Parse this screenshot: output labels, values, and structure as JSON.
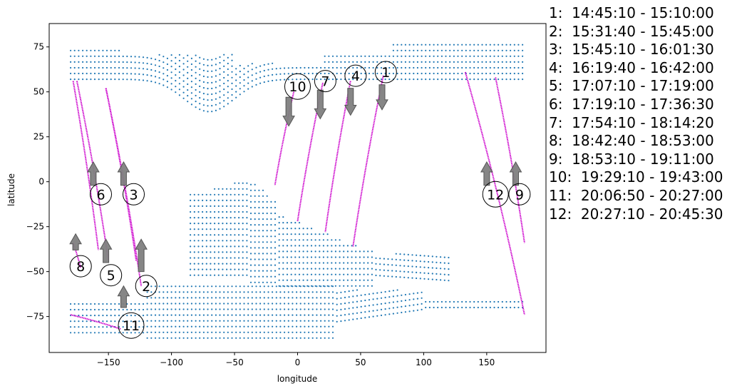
{
  "chart_data": {
    "type": "scatter",
    "xlabel": "longitude",
    "ylabel": "latitude",
    "xlim": [
      -197,
      197
    ],
    "ylim": [
      -95,
      88
    ],
    "x_ticks": [
      -150,
      -100,
      -50,
      0,
      50,
      100,
      150
    ],
    "y_ticks": [
      -75,
      -50,
      -25,
      0,
      25,
      50,
      75
    ],
    "grid": false,
    "colors": {
      "dots": "#1f77b4",
      "track": "#cc00cc",
      "arrow_fill": "#808080",
      "arrow_edge": "#555555"
    },
    "coverage_regions": [
      {
        "name": "north",
        "lon": [
          -180,
          180
        ],
        "lat": [
          57,
          77
        ],
        "dip_center_lon": -70,
        "dip_depth": 18
      },
      {
        "name": "south-america-south-atlantic",
        "lon": [
          -85,
          120
        ],
        "lat": [
          -55,
          3
        ]
      },
      {
        "name": "south-band",
        "lon": [
          -180,
          180
        ],
        "lat": [
          -87,
          -65
        ]
      }
    ],
    "tracks": [
      {
        "id": "1",
        "time": "14:45:10 - 15:10:00",
        "start": [
          68,
          59
        ],
        "end": [
          44,
          -36
        ],
        "direction": "south",
        "label_pos": [
          70,
          61
        ],
        "arrow": {
          "from": [
            67,
            54
          ],
          "to": [
            67,
            40
          ]
        }
      },
      {
        "id": "2",
        "time": "15:31:40 - 15:45:00",
        "start": [
          -152,
          52
        ],
        "end": [
          -124,
          -58
        ],
        "direction": "north",
        "label_pos": [
          -120,
          -58
        ],
        "arrow": {
          "from": [
            -124,
            -50
          ],
          "to": [
            -124,
            -32
          ]
        }
      },
      {
        "id": "3",
        "time": "15:45:10 - 16:01:30",
        "start": [
          -152,
          52
        ],
        "end": [
          -128,
          -44
        ],
        "direction": "north",
        "label_pos": [
          -130,
          -7
        ],
        "arrow": {
          "from": [
            -138,
            -2
          ],
          "to": [
            -138,
            11
          ]
        }
      },
      {
        "id": "4",
        "time": "16:19:40 - 16:42:00",
        "start": [
          42,
          56
        ],
        "end": [
          22,
          -28
        ],
        "direction": "south",
        "label_pos": [
          46,
          59
        ],
        "arrow": {
          "from": [
            42,
            52
          ],
          "to": [
            42,
            37
          ]
        }
      },
      {
        "id": "5",
        "time": "17:07:10 - 17:19:00",
        "start": [
          -175,
          56
        ],
        "end": [
          -150,
          -44
        ],
        "direction": "north",
        "label_pos": [
          -148,
          -52
        ],
        "arrow": {
          "from": [
            -152,
            -45
          ],
          "to": [
            -152,
            -32
          ]
        }
      },
      {
        "id": "6",
        "time": "17:19:10 - 17:36:30",
        "start": [
          -178,
          56
        ],
        "end": [
          -158,
          -38
        ],
        "direction": "north",
        "label_pos": [
          -156,
          -7
        ],
        "arrow": {
          "from": [
            -162,
            -2
          ],
          "to": [
            -162,
            11
          ]
        }
      },
      {
        "id": "7",
        "time": "17:54:10 - 18:14:20",
        "start": [
          20,
          55
        ],
        "end": [
          0,
          -22
        ],
        "direction": "south",
        "label_pos": [
          22,
          56
        ],
        "arrow": {
          "from": [
            18,
            51
          ],
          "to": [
            18,
            35
          ]
        }
      },
      {
        "id": "8",
        "time": "18:42:40 - 18:53:00",
        "start": [
          -178,
          -34
        ],
        "end": [
          -172,
          -48
        ],
        "direction": "north",
        "label_pos": [
          -172,
          -47
        ],
        "arrow": {
          "from": [
            -176,
            -38
          ],
          "to": [
            -176,
            -29
          ]
        }
      },
      {
        "id": "9",
        "time": "18:53:10 - 19:11:00",
        "start": [
          157,
          58
        ],
        "end": [
          180,
          -34
        ],
        "direction": "north",
        "label_pos": [
          176,
          -7
        ],
        "arrow": {
          "from": [
            173,
            -2
          ],
          "to": [
            173,
            11
          ]
        }
      },
      {
        "id": "10",
        "time": "19:29:10 - 19:43:00",
        "start": [
          -3,
          50
        ],
        "end": [
          -18,
          -2
        ],
        "direction": "south",
        "label_pos": [
          0,
          53
        ],
        "arrow": {
          "from": [
            -7,
            47
          ],
          "to": [
            -7,
            31
          ]
        }
      },
      {
        "id": "11",
        "time": "20:06:50 - 20:27:00",
        "start": [
          -180,
          -74
        ],
        "end": [
          -140,
          -82
        ],
        "direction": "north",
        "label_pos": [
          -132,
          -80
        ],
        "arrow": {
          "from": [
            -138,
            -70
          ],
          "to": [
            -138,
            -58
          ]
        }
      },
      {
        "id": "12",
        "time": "20:27:10 - 20:45:30",
        "start": [
          133,
          61
        ],
        "end": [
          180,
          -74
        ],
        "direction": "north",
        "label_pos": [
          157,
          -7
        ],
        "arrow": {
          "from": [
            150,
            -2
          ],
          "to": [
            150,
            11
          ]
        }
      }
    ],
    "legend": [
      "1:  14:45:10 - 15:10:00",
      "2:  15:31:40 - 15:45:00",
      "3:  15:45:10 - 16:01:30",
      "4:  16:19:40 - 16:42:00",
      "5:  17:07:10 - 17:19:00",
      "6:  17:19:10 - 17:36:30",
      "7:  17:54:10 - 18:14:20",
      "8:  18:42:40 - 18:53:00",
      "9:  18:53:10 - 19:11:00",
      "10:  19:29:10 - 19:43:00",
      "11:  20:06:50 - 20:27:00",
      "12:  20:27:10 - 20:45:30"
    ],
    "legend_placement": "right"
  }
}
